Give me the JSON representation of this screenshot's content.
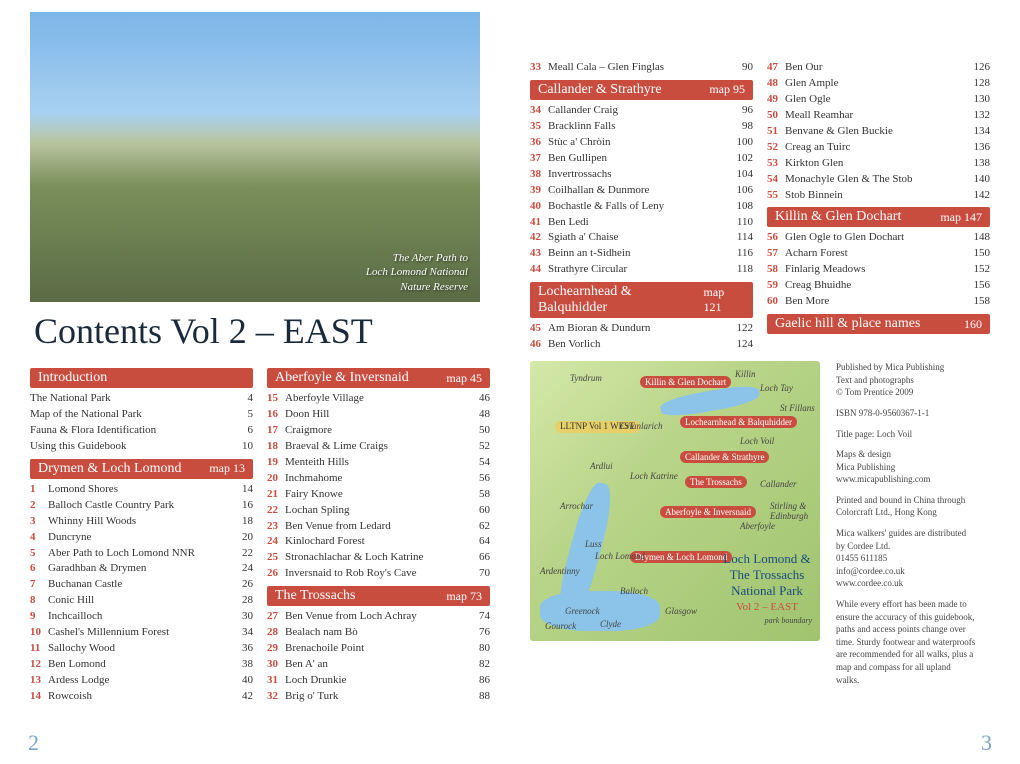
{
  "title": "Contents Vol 2 – EAST",
  "photo_caption": "The Aber Path to\nLoch Lomond National\nNature Reserve",
  "page_left_num": "2",
  "page_right_num": "3",
  "sections": {
    "introduction": {
      "header": "Introduction",
      "rows": [
        {
          "label": "The National Park",
          "page": "4"
        },
        {
          "label": "Map of the National Park",
          "page": "5"
        },
        {
          "label": "Fauna & Flora Identification",
          "page": "6"
        },
        {
          "label": "Using this Guidebook",
          "page": "10"
        }
      ]
    },
    "drymen": {
      "header": "Drymen & Loch Lomond",
      "map_ref": "map 13",
      "rows": [
        {
          "num": "1",
          "label": "Lomond Shores",
          "page": "14"
        },
        {
          "num": "2",
          "label": "Balloch Castle Country Park",
          "page": "16"
        },
        {
          "num": "3",
          "label": "Whinny Hill Woods",
          "page": "18"
        },
        {
          "num": "4",
          "label": "Duncryne",
          "page": "20"
        },
        {
          "num": "5",
          "label": "Aber Path to Loch Lomond NNR",
          "page": "22"
        },
        {
          "num": "6",
          "label": "Garadhban & Drymen",
          "page": "24"
        },
        {
          "num": "7",
          "label": "Buchanan Castle",
          "page": "26"
        },
        {
          "num": "8",
          "label": "Conic Hill",
          "page": "28"
        },
        {
          "num": "9",
          "label": "Inchcailloch",
          "page": "30"
        },
        {
          "num": "10",
          "label": "Cashel's Millennium Forest",
          "page": "34"
        },
        {
          "num": "11",
          "label": "Sallochy Wood",
          "page": "36"
        },
        {
          "num": "12",
          "label": "Ben Lomond",
          "page": "38"
        },
        {
          "num": "13",
          "label": "Ardess Lodge",
          "page": "40"
        },
        {
          "num": "14",
          "label": "Rowcoish",
          "page": "42"
        }
      ]
    },
    "aberfoyle": {
      "header": "Aberfoyle & Inversnaid",
      "map_ref": "map 45",
      "rows": [
        {
          "num": "15",
          "label": "Aberfoyle Village",
          "page": "46"
        },
        {
          "num": "16",
          "label": "Doon Hill",
          "page": "48"
        },
        {
          "num": "17",
          "label": "Craigmore",
          "page": "50"
        },
        {
          "num": "18",
          "label": "Braeval & Lime Craigs",
          "page": "52"
        },
        {
          "num": "19",
          "label": "Menteith Hills",
          "page": "54"
        },
        {
          "num": "20",
          "label": "Inchmahome",
          "page": "56"
        },
        {
          "num": "21",
          "label": "Fairy Knowe",
          "page": "58"
        },
        {
          "num": "22",
          "label": "Lochan Spling",
          "page": "60"
        },
        {
          "num": "23",
          "label": "Ben Venue from Ledard",
          "page": "62"
        },
        {
          "num": "24",
          "label": "Kinlochard Forest",
          "page": "64"
        },
        {
          "num": "25",
          "label": "Stronachlachar & Loch Katrine",
          "page": "66"
        },
        {
          "num": "26",
          "label": "Inversnaid to Rob Roy's Cave",
          "page": "70"
        }
      ]
    },
    "trossachs": {
      "header": "The Trossachs",
      "map_ref": "map 73",
      "rows": [
        {
          "num": "27",
          "label": "Ben Venue from Loch Achray",
          "page": "74"
        },
        {
          "num": "28",
          "label": "Bealach nam Bò",
          "page": "76"
        },
        {
          "num": "29",
          "label": "Brenachoile Point",
          "page": "80"
        },
        {
          "num": "30",
          "label": "Ben A' an",
          "page": "82"
        },
        {
          "num": "31",
          "label": "Loch Drunkie",
          "page": "86"
        },
        {
          "num": "32",
          "label": "Brig o' Turk",
          "page": "88"
        }
      ]
    },
    "right_pre": [
      {
        "num": "33",
        "label": "Meall Cala – Glen Finglas",
        "page": "90"
      }
    ],
    "callander": {
      "header": "Callander & Strathyre",
      "map_ref": "map 95",
      "rows": [
        {
          "num": "34",
          "label": "Callander Craig",
          "page": "96"
        },
        {
          "num": "35",
          "label": "Bracklinn Falls",
          "page": "98"
        },
        {
          "num": "36",
          "label": "Stùc a' Chròin",
          "page": "100"
        },
        {
          "num": "37",
          "label": "Ben Gullipen",
          "page": "102"
        },
        {
          "num": "38",
          "label": "Invertrossachs",
          "page": "104"
        },
        {
          "num": "39",
          "label": "Coilhallan & Dunmore",
          "page": "106"
        },
        {
          "num": "40",
          "label": "Bochastle & Falls of Leny",
          "page": "108"
        },
        {
          "num": "41",
          "label": "Ben Ledi",
          "page": "110"
        },
        {
          "num": "42",
          "label": "Sgiath a' Chaise",
          "page": "114"
        },
        {
          "num": "43",
          "label": "Beinn an t-Sìdhein",
          "page": "116"
        },
        {
          "num": "44",
          "label": "Strathyre Circular",
          "page": "118"
        }
      ]
    },
    "lochearnhead": {
      "header": "Lochearnhead & Balquhidder",
      "map_ref": "map 121",
      "rows": [
        {
          "num": "45",
          "label": "Am Bioran & Dundurn",
          "page": "122"
        },
        {
          "num": "46",
          "label": "Ben Vorlich",
          "page": "124"
        }
      ]
    },
    "right_col2_pre": [
      {
        "num": "47",
        "label": "Ben Our",
        "page": "126"
      },
      {
        "num": "48",
        "label": "Glen Ample",
        "page": "128"
      },
      {
        "num": "49",
        "label": "Glen Ogle",
        "page": "130"
      },
      {
        "num": "50",
        "label": "Meall Reamhar",
        "page": "132"
      },
      {
        "num": "51",
        "label": "Benvane & Glen Buckie",
        "page": "134"
      },
      {
        "num": "52",
        "label": "Creag an Tuirc",
        "page": "136"
      },
      {
        "num": "53",
        "label": "Kirkton Glen",
        "page": "138"
      },
      {
        "num": "54",
        "label": "Monachyle Glen & The Stob",
        "page": "140"
      },
      {
        "num": "55",
        "label": "Stob Binnein",
        "page": "142"
      }
    ],
    "killin": {
      "header": "Killin & Glen Dochart",
      "map_ref": "map 147",
      "rows": [
        {
          "num": "56",
          "label": "Glen Ogle to Glen Dochart",
          "page": "148"
        },
        {
          "num": "57",
          "label": "Acharn Forest",
          "page": "150"
        },
        {
          "num": "58",
          "label": "Finlarig Meadows",
          "page": "152"
        },
        {
          "num": "59",
          "label": "Creag Bhuidhe",
          "page": "156"
        },
        {
          "num": "60",
          "label": "Ben More",
          "page": "158"
        }
      ]
    },
    "gaelic": {
      "header": "Gaelic hill & place names",
      "page": "160"
    }
  },
  "map_labels": {
    "killin": "Killin &\nGlen Dochart",
    "lochearnhead": "Lochearnhead\n& Balquhidder",
    "callander": "Callander & Strathyre",
    "trossachs": "The\nTrossachs",
    "aberfoyle": "Aberfoyle & Inversnaid",
    "drymen": "Drymen &\nLoch Lomond",
    "lltnp": "LLTNP\nVol 1\nWEST",
    "tyndrum": "Tyndrum",
    "killintext": "Killin",
    "lochtay": "Loch Tay",
    "stfillans": "St\nFillans",
    "crianlarich": "Crianlarich",
    "lochvoil": "Loch\nVoil",
    "ardlui": "Ardlui",
    "lochkatrine": "Loch\nKatrine",
    "callandertext": "Callander",
    "arrochar": "Arrochar",
    "stirling": "Stirling &\nEdinburgh",
    "aberfoyletext": "Aberfoyle",
    "luss": "Luss",
    "lochlomond": "Loch\nLomond",
    "ardentinny": "Ardentinny",
    "balloch": "Balloch",
    "greenock": "Greenock",
    "glasgow": "Glasgow",
    "gourock": "Gourock",
    "clyde": "Clyde",
    "parktitle": "Loch Lomond &\nThe Trossachs\nNational Park",
    "vol2": "Vol 2 – EAST",
    "parkboundary": "park boundary"
  },
  "sidebar": {
    "p1": "Published by Mica Publishing\nText and photographs\n© Tom Prentice 2009",
    "p2": "ISBN 978-0-9560367-1-1",
    "p3": "Title page: Loch Voil",
    "p4": "Maps & design\nMica Publishing\nwww.micapublishing.com",
    "p5": "Printed and bound in China through Colorcraft Ltd., Hong Kong",
    "p6": "Mica walkers' guides are distributed by Cordee Ltd.\n01455 611185\ninfo@cordee.co.uk\nwww.cordee.co.uk",
    "p7": "While every effort has been made to ensure the accuracy of this guidebook, paths and access points change over time. Sturdy footwear and waterproofs are recommended for all walks, plus a map and compass for all upland walks."
  }
}
